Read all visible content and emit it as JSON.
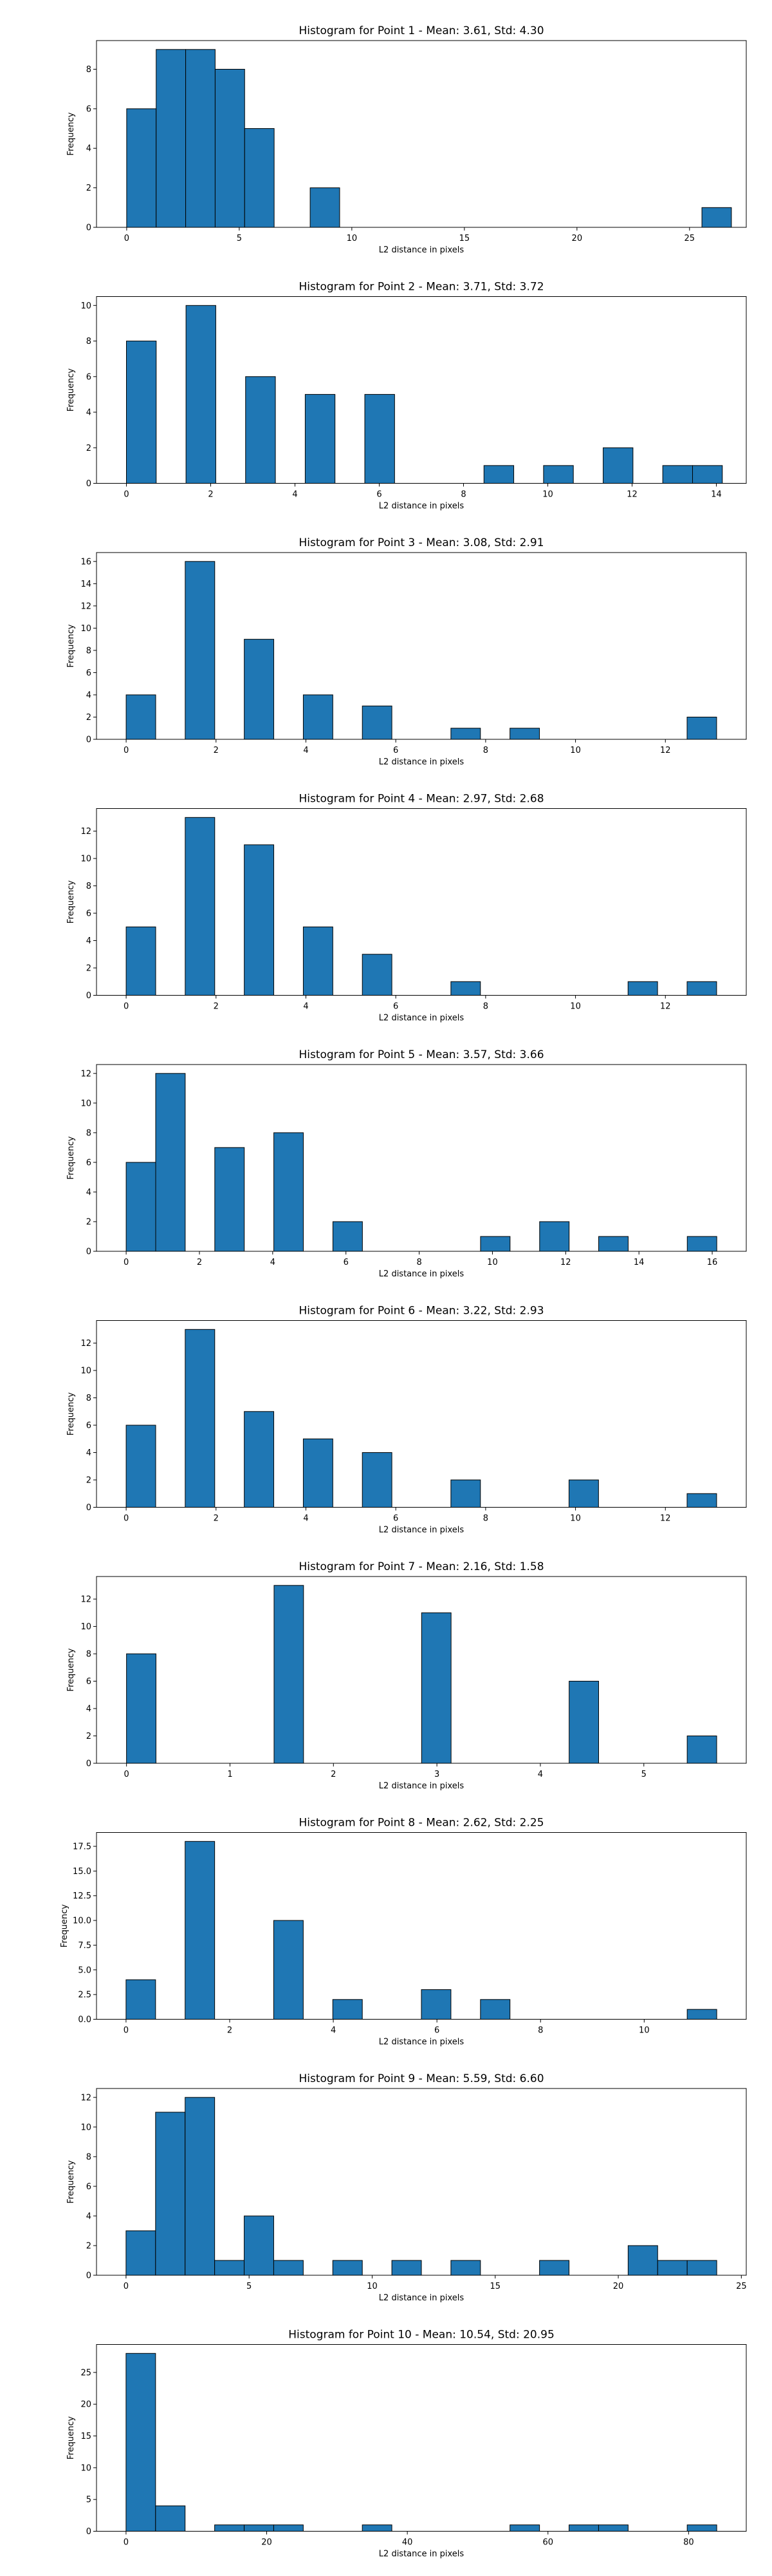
{
  "chart_data": [
    {
      "type": "bar",
      "title": "Histogram for Point 1 - Mean: 3.61, Std: 4.30",
      "xlabel": "L2 distance in pixels",
      "ylabel": "Frequency",
      "color": "#1f77b4",
      "xlim": [
        -1.34,
        27.52
      ],
      "ylim": [
        0,
        9.45
      ],
      "xticks": [
        0,
        5,
        10,
        15,
        20,
        25
      ],
      "xtick_labels": [
        "0",
        "5",
        "10",
        "15",
        "20",
        "25"
      ],
      "yticks": [
        0,
        2,
        4,
        6,
        8
      ],
      "ytick_labels": [
        "0",
        "2",
        "4",
        "6",
        "8"
      ],
      "bin_width": 1.31,
      "bins": [
        {
          "x0": 0.0,
          "count": 6
        },
        {
          "x0": 1.31,
          "count": 9
        },
        {
          "x0": 2.62,
          "count": 9
        },
        {
          "x0": 3.93,
          "count": 8
        },
        {
          "x0": 5.24,
          "count": 5
        },
        {
          "x0": 8.15,
          "count": 2
        },
        {
          "x0": 25.55,
          "count": 1
        }
      ]
    },
    {
      "type": "bar",
      "title": "Histogram for Point 2 - Mean: 3.71, Std: 3.72",
      "xlabel": "L2 distance in pixels",
      "ylabel": "Frequency",
      "color": "#1f77b4",
      "xlim": [
        -0.71,
        14.71
      ],
      "ylim": [
        0,
        10.5
      ],
      "xticks": [
        0,
        2,
        4,
        6,
        8,
        10,
        12,
        14
      ],
      "xtick_labels": [
        "0",
        "2",
        "4",
        "6",
        "8",
        "10",
        "12",
        "14"
      ],
      "yticks": [
        0,
        2,
        4,
        6,
        8,
        10
      ],
      "ytick_labels": [
        "0",
        "2",
        "4",
        "6",
        "8",
        "10"
      ],
      "bin_width": 0.707,
      "bins": [
        {
          "x0": 0.0,
          "count": 8
        },
        {
          "x0": 1.414,
          "count": 10
        },
        {
          "x0": 2.828,
          "count": 6
        },
        {
          "x0": 4.243,
          "count": 5
        },
        {
          "x0": 5.657,
          "count": 5
        },
        {
          "x0": 8.485,
          "count": 1
        },
        {
          "x0": 9.899,
          "count": 1
        },
        {
          "x0": 11.314,
          "count": 2
        },
        {
          "x0": 12.728,
          "count": 1
        },
        {
          "x0": 13.435,
          "count": 1
        }
      ]
    },
    {
      "type": "bar",
      "title": "Histogram for Point 3 - Mean: 3.08, Std: 2.91",
      "xlabel": "L2 distance in pixels",
      "ylabel": "Frequency",
      "color": "#1f77b4",
      "xlim": [
        -0.66,
        13.8
      ],
      "ylim": [
        0,
        16.8
      ],
      "xticks": [
        0,
        2,
        4,
        6,
        8,
        10,
        12
      ],
      "xtick_labels": [
        "0",
        "2",
        "4",
        "6",
        "8",
        "10",
        "12"
      ],
      "yticks": [
        0,
        2,
        4,
        6,
        8,
        10,
        12,
        14,
        16
      ],
      "ytick_labels": [
        "0",
        "2",
        "4",
        "6",
        "8",
        "10",
        "12",
        "14",
        "16"
      ],
      "bin_width": 0.657,
      "bins": [
        {
          "x0": 0.0,
          "count": 4
        },
        {
          "x0": 1.314,
          "count": 16
        },
        {
          "x0": 2.628,
          "count": 9
        },
        {
          "x0": 3.942,
          "count": 4
        },
        {
          "x0": 5.256,
          "count": 3
        },
        {
          "x0": 7.227,
          "count": 1
        },
        {
          "x0": 8.541,
          "count": 1
        },
        {
          "x0": 12.483,
          "count": 2
        }
      ]
    },
    {
      "type": "bar",
      "title": "Histogram for Point 4 - Mean: 2.97, Std: 2.68",
      "xlabel": "L2 distance in pixels",
      "ylabel": "Frequency",
      "color": "#1f77b4",
      "xlim": [
        -0.66,
        13.8
      ],
      "ylim": [
        0,
        13.65
      ],
      "xticks": [
        0,
        2,
        4,
        6,
        8,
        10,
        12
      ],
      "xtick_labels": [
        "0",
        "2",
        "4",
        "6",
        "8",
        "10",
        "12"
      ],
      "yticks": [
        0,
        2,
        4,
        6,
        8,
        10,
        12
      ],
      "ytick_labels": [
        "0",
        "2",
        "4",
        "6",
        "8",
        "10",
        "12"
      ],
      "bin_width": 0.657,
      "bins": [
        {
          "x0": 0.0,
          "count": 5
        },
        {
          "x0": 1.314,
          "count": 13
        },
        {
          "x0": 2.628,
          "count": 11
        },
        {
          "x0": 3.942,
          "count": 5
        },
        {
          "x0": 5.256,
          "count": 3
        },
        {
          "x0": 7.227,
          "count": 1
        },
        {
          "x0": 11.169,
          "count": 1
        },
        {
          "x0": 12.483,
          "count": 1
        }
      ]
    },
    {
      "type": "bar",
      "title": "Histogram for Point 5 - Mean: 3.57, Std: 3.66",
      "xlabel": "L2 distance in pixels",
      "ylabel": "Frequency",
      "color": "#1f77b4",
      "xlim": [
        -0.81,
        16.93
      ],
      "ylim": [
        0,
        12.6
      ],
      "xticks": [
        0,
        2,
        4,
        6,
        8,
        10,
        12,
        14,
        16
      ],
      "xtick_labels": [
        "0",
        "2",
        "4",
        "6",
        "8",
        "10",
        "12",
        "14",
        "16"
      ],
      "yticks": [
        0,
        2,
        4,
        6,
        8,
        10,
        12
      ],
      "ytick_labels": [
        "0",
        "2",
        "4",
        "6",
        "8",
        "10",
        "12"
      ],
      "bin_width": 0.806,
      "bins": [
        {
          "x0": 0.0,
          "count": 6
        },
        {
          "x0": 0.806,
          "count": 12
        },
        {
          "x0": 2.419,
          "count": 7
        },
        {
          "x0": 4.031,
          "count": 8
        },
        {
          "x0": 5.644,
          "count": 2
        },
        {
          "x0": 9.675,
          "count": 1
        },
        {
          "x0": 11.288,
          "count": 2
        },
        {
          "x0": 12.9,
          "count": 1
        },
        {
          "x0": 15.319,
          "count": 1
        }
      ]
    },
    {
      "type": "bar",
      "title": "Histogram for Point 6 - Mean: 3.22, Std: 2.93",
      "xlabel": "L2 distance in pixels",
      "ylabel": "Frequency",
      "color": "#1f77b4",
      "xlim": [
        -0.66,
        13.8
      ],
      "ylim": [
        0,
        13.65
      ],
      "xticks": [
        0,
        2,
        4,
        6,
        8,
        10,
        12
      ],
      "xtick_labels": [
        "0",
        "2",
        "4",
        "6",
        "8",
        "10",
        "12"
      ],
      "yticks": [
        0,
        2,
        4,
        6,
        8,
        10,
        12
      ],
      "ytick_labels": [
        "0",
        "2",
        "4",
        "6",
        "8",
        "10",
        "12"
      ],
      "bin_width": 0.657,
      "bins": [
        {
          "x0": 0.0,
          "count": 6
        },
        {
          "x0": 1.314,
          "count": 13
        },
        {
          "x0": 2.628,
          "count": 7
        },
        {
          "x0": 3.942,
          "count": 5
        },
        {
          "x0": 5.256,
          "count": 4
        },
        {
          "x0": 7.227,
          "count": 2
        },
        {
          "x0": 9.855,
          "count": 2
        },
        {
          "x0": 12.483,
          "count": 1
        }
      ]
    },
    {
      "type": "bar",
      "title": "Histogram for Point 7 - Mean: 2.16, Std: 1.58",
      "xlabel": "L2 distance in pixels",
      "ylabel": "Frequency",
      "color": "#1f77b4",
      "xlim": [
        -0.29,
        5.99
      ],
      "ylim": [
        0,
        13.65
      ],
      "xticks": [
        0,
        1,
        2,
        3,
        4,
        5
      ],
      "xtick_labels": [
        "0",
        "1",
        "2",
        "3",
        "4",
        "5"
      ],
      "yticks": [
        0,
        2,
        4,
        6,
        8,
        10,
        12
      ],
      "ytick_labels": [
        "0",
        "2",
        "4",
        "6",
        "8",
        "10",
        "12"
      ],
      "bin_width": 0.285,
      "bins": [
        {
          "x0": 0.0,
          "count": 8
        },
        {
          "x0": 1.426,
          "count": 13
        },
        {
          "x0": 2.852,
          "count": 11
        },
        {
          "x0": 4.278,
          "count": 6
        },
        {
          "x0": 5.419,
          "count": 2
        }
      ]
    },
    {
      "type": "bar",
      "title": "Histogram for Point 8 - Mean: 2.62, Std: 2.25",
      "xlabel": "L2 distance in pixels",
      "ylabel": "Frequency",
      "color": "#1f77b4",
      "xlim": [
        -0.57,
        11.97
      ],
      "ylim": [
        0,
        18.9
      ],
      "xticks": [
        0,
        2,
        4,
        6,
        8,
        10
      ],
      "xtick_labels": [
        "0",
        "2",
        "4",
        "6",
        "8",
        "10"
      ],
      "yticks": [
        0,
        2.5,
        5,
        7.5,
        10,
        12.5,
        15,
        17.5
      ],
      "ytick_labels": [
        "0.0",
        "2.5",
        "5.0",
        "7.5",
        "10.0",
        "12.5",
        "15.0",
        "17.5"
      ],
      "bin_width": 0.57,
      "bins": [
        {
          "x0": 0.0,
          "count": 4
        },
        {
          "x0": 1.14,
          "count": 18
        },
        {
          "x0": 2.85,
          "count": 10
        },
        {
          "x0": 3.99,
          "count": 2
        },
        {
          "x0": 5.7,
          "count": 3
        },
        {
          "x0": 6.84,
          "count": 2
        },
        {
          "x0": 10.83,
          "count": 1
        }
      ]
    },
    {
      "type": "bar",
      "title": "Histogram for Point 9 - Mean: 5.59, Std: 6.60",
      "xlabel": "L2 distance in pixels",
      "ylabel": "Frequency",
      "color": "#1f77b4",
      "xlim": [
        -1.2,
        25.2
      ],
      "ylim": [
        0,
        12.6
      ],
      "xticks": [
        0,
        5,
        10,
        15,
        20,
        25
      ],
      "xtick_labels": [
        "0",
        "5",
        "10",
        "15",
        "20",
        "25"
      ],
      "yticks": [
        0,
        2,
        4,
        6,
        8,
        10,
        12
      ],
      "ytick_labels": [
        "0",
        "2",
        "4",
        "6",
        "8",
        "10",
        "12"
      ],
      "bin_width": 1.2,
      "bins": [
        {
          "x0": 0.0,
          "count": 3
        },
        {
          "x0": 1.2,
          "count": 11
        },
        {
          "x0": 2.4,
          "count": 12
        },
        {
          "x0": 3.6,
          "count": 1
        },
        {
          "x0": 4.8,
          "count": 4
        },
        {
          "x0": 6.0,
          "count": 1
        },
        {
          "x0": 8.4,
          "count": 1
        },
        {
          "x0": 10.8,
          "count": 1
        },
        {
          "x0": 13.2,
          "count": 1
        },
        {
          "x0": 16.8,
          "count": 1
        },
        {
          "x0": 20.4,
          "count": 2
        },
        {
          "x0": 21.6,
          "count": 1
        },
        {
          "x0": 22.8,
          "count": 1
        }
      ]
    },
    {
      "type": "bar",
      "title": "Histogram for Point 10 - Mean: 10.54, Std: 20.95",
      "xlabel": "L2 distance in pixels",
      "ylabel": "Frequency",
      "color": "#1f77b4",
      "xlim": [
        -4.2,
        88.2
      ],
      "ylim": [
        0,
        29.4
      ],
      "xticks": [
        0,
        20,
        40,
        60,
        80
      ],
      "xtick_labels": [
        "0",
        "20",
        "40",
        "60",
        "80"
      ],
      "yticks": [
        0,
        5,
        10,
        15,
        20,
        25
      ],
      "ytick_labels": [
        "0",
        "5",
        "10",
        "15",
        "20",
        "25"
      ],
      "bin_width": 4.2,
      "bins": [
        {
          "x0": 0.0,
          "count": 28
        },
        {
          "x0": 4.2,
          "count": 4
        },
        {
          "x0": 12.6,
          "count": 1
        },
        {
          "x0": 16.8,
          "count": 1
        },
        {
          "x0": 21.0,
          "count": 1
        },
        {
          "x0": 33.6,
          "count": 1
        },
        {
          "x0": 54.6,
          "count": 1
        },
        {
          "x0": 63.0,
          "count": 1
        },
        {
          "x0": 67.2,
          "count": 1
        },
        {
          "x0": 79.8,
          "count": 1
        }
      ]
    }
  ]
}
